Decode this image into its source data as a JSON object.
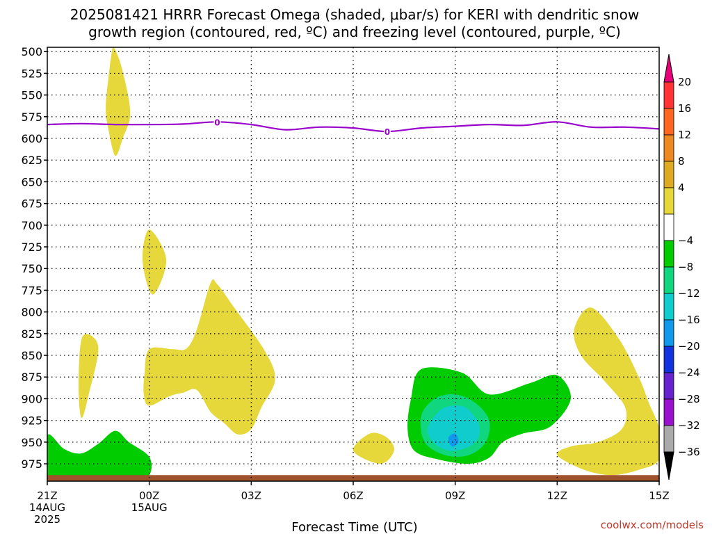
{
  "title": {
    "line1": "2025081421 HRRR Forecast Omega (shaded, μbar/s) for KERI with dendritic snow",
    "line2": "growth region (contoured, red, ºC) and freezing level (contoured, purple, ºC)"
  },
  "credit": "coolwx.com/models",
  "chart_data": {
    "type": "heatmap",
    "xlabel": "Forecast Time (UTC)",
    "ylabel": "",
    "xlim": [
      0,
      18
    ],
    "ylim": [
      995,
      495
    ],
    "x_ticks": [
      {
        "x": 0,
        "lines": [
          "21Z",
          "14AUG",
          "2025"
        ]
      },
      {
        "x": 3,
        "lines": [
          "00Z",
          "15AUG"
        ]
      },
      {
        "x": 6,
        "lines": [
          "03Z"
        ]
      },
      {
        "x": 9,
        "lines": [
          "06Z"
        ]
      },
      {
        "x": 12,
        "lines": [
          "09Z"
        ]
      },
      {
        "x": 15,
        "lines": [
          "12Z"
        ]
      },
      {
        "x": 18,
        "lines": [
          "15Z"
        ]
      }
    ],
    "y_ticks": [
      500,
      525,
      550,
      575,
      600,
      625,
      650,
      675,
      700,
      725,
      750,
      775,
      800,
      825,
      850,
      875,
      900,
      925,
      950,
      975
    ],
    "grid": true,
    "colorbar": {
      "labels": [
        "20",
        "16",
        "12",
        "8",
        "4",
        "−4",
        "−8",
        "−12",
        "−16",
        "−20",
        "−24",
        "−28",
        "−32",
        "−36"
      ],
      "colors": [
        "#e8007a",
        "#ff3333",
        "#ff6622",
        "#ee8822",
        "#ddaa22",
        "#e6d83a",
        "#ffffff",
        "#00cc00",
        "#11d680",
        "#11cccc",
        "#1199ee",
        "#1133dd",
        "#6622cc",
        "#9911cc",
        "#aaaaaa",
        "#000000"
      ]
    },
    "freezing_level": {
      "label": "0",
      "color": "#9900cc",
      "points": [
        [
          0,
          584
        ],
        [
          1,
          583
        ],
        [
          2,
          584
        ],
        [
          3,
          584
        ],
        [
          4,
          583.5
        ],
        [
          5,
          581
        ],
        [
          6,
          584
        ],
        [
          7,
          590
        ],
        [
          8,
          587
        ],
        [
          9,
          588
        ],
        [
          10,
          592
        ],
        [
          11,
          588
        ],
        [
          12,
          586
        ],
        [
          13,
          584
        ],
        [
          14,
          585
        ],
        [
          15,
          581
        ],
        [
          16,
          587
        ],
        [
          17,
          587
        ],
        [
          18,
          589
        ]
      ],
      "label_positions": [
        [
          5,
          581
        ],
        [
          10,
          592
        ]
      ]
    },
    "omega_regions": [
      {
        "name": "weak-rising-1",
        "value_range": "4 to 8",
        "color": "#e6d83a",
        "points": [
          [
            1.96,
            495
          ],
          [
            2.2,
            520
          ],
          [
            2.44,
            570
          ],
          [
            2.22,
            600
          ],
          [
            2.0,
            620
          ],
          [
            1.8,
            590
          ],
          [
            1.72,
            565
          ],
          [
            1.8,
            530
          ],
          [
            1.9,
            500
          ]
        ]
      },
      {
        "name": "weak-rising-2",
        "value_range": "4 to 8",
        "color": "#e6d83a",
        "points": [
          [
            3.0,
            705
          ],
          [
            3.5,
            740
          ],
          [
            3.1,
            780
          ],
          [
            2.8,
            740
          ]
        ]
      },
      {
        "name": "weak-rising-3",
        "value_range": "4 to 8",
        "color": "#e6d83a",
        "points": [
          [
            1.04,
            828
          ],
          [
            1.5,
            840
          ],
          [
            1.22,
            895
          ],
          [
            1.0,
            922
          ],
          [
            0.92,
            880
          ]
        ]
      },
      {
        "name": "weak-rising-4",
        "value_range": "4 to 8",
        "color": "#e6d83a",
        "points": [
          [
            2.86,
            872
          ],
          [
            3.0,
            843
          ],
          [
            3.7,
            843
          ],
          [
            4.1,
            842
          ],
          [
            4.4,
            820
          ],
          [
            4.8,
            767
          ],
          [
            5.0,
            768
          ],
          [
            5.5,
            795
          ],
          [
            6.4,
            845
          ],
          [
            6.7,
            878
          ],
          [
            6.3,
            910
          ],
          [
            6.0,
            935
          ],
          [
            5.6,
            941
          ],
          [
            5.2,
            928
          ],
          [
            4.8,
            915
          ],
          [
            4.4,
            890
          ],
          [
            4.0,
            893
          ],
          [
            3.6,
            897
          ],
          [
            3.0,
            908
          ],
          [
            2.84,
            895
          ]
        ]
      },
      {
        "name": "weak-rising-5",
        "value_range": "4 to 8",
        "color": "#e6d83a",
        "points": [
          [
            9.0,
            960
          ],
          [
            9.5,
            940
          ],
          [
            10.0,
            945
          ],
          [
            10.2,
            960
          ],
          [
            9.8,
            975
          ]
        ]
      },
      {
        "name": "weak-rising-6",
        "value_range": "4 to 8",
        "color": "#e6d83a",
        "points": [
          [
            15.5,
            820
          ],
          [
            16.0,
            795
          ],
          [
            16.8,
            830
          ],
          [
            17.4,
            875
          ],
          [
            17.7,
            905
          ],
          [
            18.0,
            935
          ],
          [
            18.0,
            970
          ],
          [
            17.4,
            982
          ],
          [
            16.6,
            988
          ],
          [
            15.8,
            982
          ],
          [
            15.0,
            965
          ],
          [
            15.4,
            955
          ],
          [
            16.2,
            950
          ],
          [
            16.9,
            935
          ],
          [
            17.0,
            910
          ],
          [
            16.4,
            880
          ],
          [
            15.7,
            850
          ]
        ]
      },
      {
        "name": "weak-rising-7",
        "value_range": "4 to 8",
        "color": "#e6d83a",
        "points": [
          [
            6.0,
            995
          ],
          [
            7.0,
            990
          ],
          [
            8.4,
            992
          ],
          [
            9.5,
            993
          ],
          [
            8.0,
            995
          ]
        ]
      },
      {
        "name": "sinking-1",
        "value_range": "-4 to -8",
        "color": "#00cc00",
        "points": [
          [
            0,
            942
          ],
          [
            0.5,
            958
          ],
          [
            1.0,
            963
          ],
          [
            1.5,
            952
          ],
          [
            2.0,
            937
          ],
          [
            2.4,
            950
          ],
          [
            3.0,
            967
          ],
          [
            3.0,
            988
          ],
          [
            2.5,
            993
          ],
          [
            1.5,
            992
          ],
          [
            0,
            993
          ]
        ]
      },
      {
        "name": "sinking-2",
        "value_range": "-4 to -8",
        "color": "#00cc00",
        "points": [
          [
            11.0,
            866
          ],
          [
            12.2,
            870
          ],
          [
            13.0,
            895
          ],
          [
            14.2,
            882
          ],
          [
            15.0,
            873
          ],
          [
            15.4,
            900
          ],
          [
            14.8,
            932
          ],
          [
            14.0,
            940
          ],
          [
            13.4,
            950
          ],
          [
            13.0,
            968
          ],
          [
            12.4,
            975
          ],
          [
            11.5,
            970
          ],
          [
            10.8,
            960
          ],
          [
            10.6,
            935
          ],
          [
            10.7,
            900
          ]
        ]
      },
      {
        "name": "sinking-3",
        "value_range": "-8 to -12",
        "color": "#11d680",
        "points": [
          [
            11.0,
            920
          ],
          [
            11.4,
            900
          ],
          [
            12.0,
            895
          ],
          [
            12.6,
            905
          ],
          [
            13.0,
            925
          ],
          [
            12.9,
            950
          ],
          [
            12.4,
            965
          ],
          [
            11.7,
            965
          ],
          [
            11.1,
            950
          ]
        ]
      },
      {
        "name": "sinking-4",
        "value_range": "-12 to -16",
        "color": "#11cccc",
        "points": [
          [
            11.3,
            925
          ],
          [
            11.7,
            910
          ],
          [
            12.3,
            910
          ],
          [
            12.7,
            930
          ],
          [
            12.6,
            950
          ],
          [
            12.0,
            960
          ],
          [
            11.5,
            955
          ],
          [
            11.2,
            940
          ]
        ]
      },
      {
        "name": "sinking-5",
        "value_range": "-16 to -20",
        "color": "#1199ee",
        "points": [
          [
            11.8,
            945
          ],
          [
            12.0,
            940
          ],
          [
            12.1,
            950
          ],
          [
            11.9,
            955
          ]
        ]
      }
    ],
    "surface": {
      "color": "#a0522d",
      "from_pressure": 988,
      "to_pressure": 995
    }
  }
}
